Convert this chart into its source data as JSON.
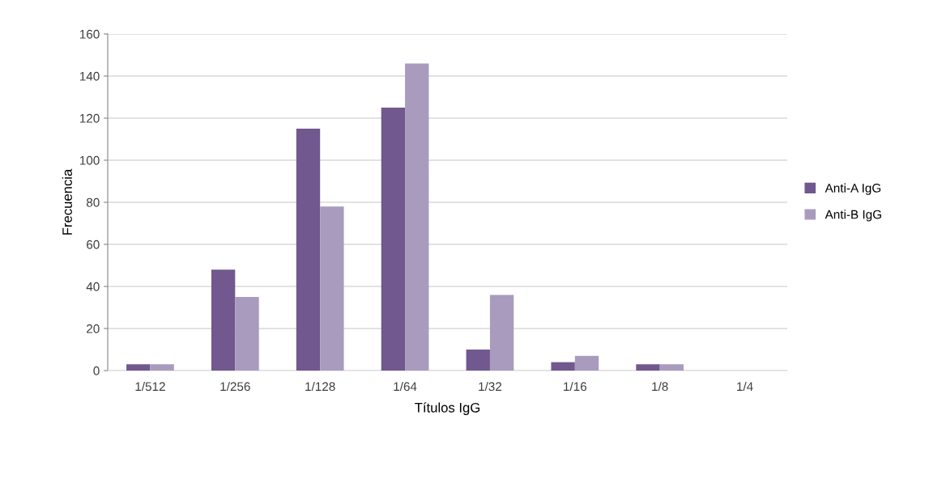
{
  "chart_data": {
    "type": "bar",
    "xlabel": "Títulos IgG",
    "ylabel": "Frecuencia",
    "categories": [
      "1/512",
      "1/256",
      "1/128",
      "1/64",
      "1/32",
      "1/16",
      "1/8",
      "1/4"
    ],
    "series": [
      {
        "name": "Anti-A IgG",
        "color": "#71588f",
        "values": [
          3,
          48,
          115,
          125,
          10,
          4,
          3,
          0
        ]
      },
      {
        "name": "Anti-B IgG",
        "color": "#a99bbd",
        "values": [
          3,
          35,
          78,
          146,
          36,
          7,
          3,
          0
        ]
      }
    ],
    "ylim": [
      0,
      160
    ],
    "yticks": [
      0,
      20,
      40,
      60,
      80,
      100,
      120,
      140,
      160
    ],
    "grid": "y",
    "legend": "right"
  }
}
